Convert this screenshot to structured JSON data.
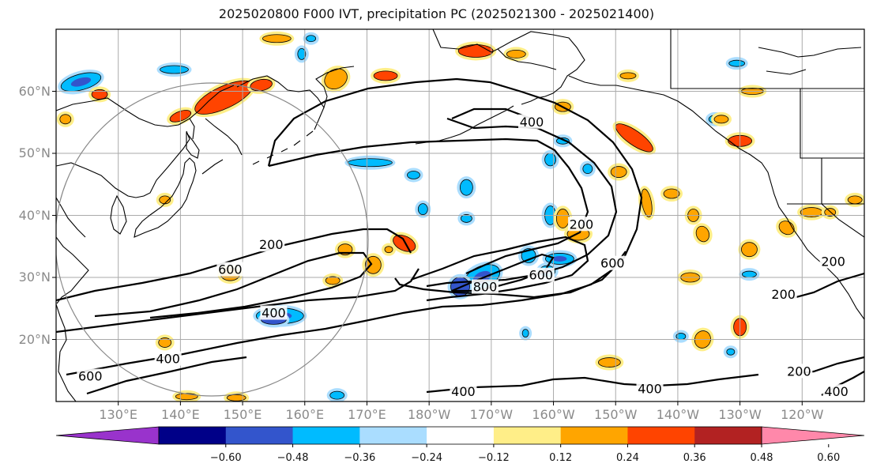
{
  "title": "2025020800 F000 IVT, precipitation PC (2025021300 - 2025021400)",
  "map": {
    "lon_range": [
      120,
      250
    ],
    "lat_range": [
      10,
      70
    ],
    "lat_ticks": [
      {
        "lat": 60,
        "label": "60°N"
      },
      {
        "lat": 50,
        "label": "50°N"
      },
      {
        "lat": 40,
        "label": "40°N"
      },
      {
        "lat": 30,
        "label": "30°N"
      },
      {
        "lat": 20,
        "label": "20°N"
      }
    ],
    "lon_ticks": [
      {
        "lon": 130,
        "label": "130°E"
      },
      {
        "lon": 140,
        "label": "140°E"
      },
      {
        "lon": 150,
        "label": "150°E"
      },
      {
        "lon": 160,
        "label": "160°E"
      },
      {
        "lon": 170,
        "label": "170°E"
      },
      {
        "lon": 180,
        "label": "180°W"
      },
      {
        "lon": 190,
        "label": "170°W"
      },
      {
        "lon": 200,
        "label": "160°W"
      },
      {
        "lon": 210,
        "label": "150°W"
      },
      {
        "lon": 220,
        "label": "140°W"
      },
      {
        "lon": 230,
        "label": "130°W"
      },
      {
        "lon": 240,
        "label": "120°W"
      }
    ],
    "contour_labels": [
      {
        "text": "400",
        "lon": 196.5,
        "lat": 55
      },
      {
        "text": "200",
        "lon": 154.6,
        "lat": 35.2
      },
      {
        "text": "600",
        "lon": 148,
        "lat": 31.2
      },
      {
        "text": "400",
        "lon": 155,
        "lat": 24.2
      },
      {
        "text": "400",
        "lon": 138,
        "lat": 16.8
      },
      {
        "text": "600",
        "lon": 125.5,
        "lat": 14
      },
      {
        "text": "200",
        "lon": 204.5,
        "lat": 38.5
      },
      {
        "text": "600",
        "lon": 209.5,
        "lat": 32.2
      },
      {
        "text": "600",
        "lon": 198,
        "lat": 30.3
      },
      {
        "text": "800",
        "lon": 189,
        "lat": 28.4
      },
      {
        "text": "200",
        "lon": 237,
        "lat": 27.2
      },
      {
        "text": "200",
        "lon": 245,
        "lat": 32.5
      },
      {
        "text": "200",
        "lon": 239.5,
        "lat": 14.8
      },
      {
        "text": "400",
        "lon": 185.5,
        "lat": 11.5
      },
      {
        "text": "400",
        "lon": 215.5,
        "lat": 12
      },
      {
        "text": "400",
        "lon": 245.5,
        "lat": 11.5
      }
    ],
    "precip_blobs": [
      {
        "lon": 147,
        "lat": 59,
        "rx": 40,
        "ry": 14,
        "rot": -25,
        "level": 3
      },
      {
        "lon": 140,
        "lat": 56,
        "rx": 14,
        "ry": 6,
        "rot": -20,
        "level": 3
      },
      {
        "lon": 153,
        "lat": 61,
        "rx": 14,
        "ry": 7,
        "rot": -10,
        "level": 3
      },
      {
        "lon": 155.5,
        "lat": 68.5,
        "rx": 18,
        "ry": 5,
        "rot": 0,
        "level": 2
      },
      {
        "lon": 165,
        "lat": 62,
        "rx": 15,
        "ry": 12,
        "rot": -30,
        "level": 2
      },
      {
        "lon": 173,
        "lat": 62.5,
        "rx": 15,
        "ry": 6,
        "rot": 0,
        "level": 3
      },
      {
        "lon": 187.5,
        "lat": 66.5,
        "rx": 22,
        "ry": 8,
        "rot": 0,
        "level": 3
      },
      {
        "lon": 194,
        "lat": 66,
        "rx": 12,
        "ry": 5,
        "rot": 0,
        "level": 2
      },
      {
        "lon": 127,
        "lat": 59.5,
        "rx": 10,
        "ry": 6,
        "rot": 0,
        "level": 3
      },
      {
        "lon": 121.5,
        "lat": 55.5,
        "rx": 7,
        "ry": 6,
        "rot": 0,
        "level": 2
      },
      {
        "lon": 213,
        "lat": 52.5,
        "rx": 28,
        "ry": 9,
        "rot": 35,
        "level": 4
      },
      {
        "lon": 210.5,
        "lat": 47,
        "rx": 10,
        "ry": 7,
        "rot": 0,
        "level": 2
      },
      {
        "lon": 215,
        "lat": 42,
        "rx": 6,
        "ry": 18,
        "rot": -10,
        "level": 2
      },
      {
        "lon": 201.5,
        "lat": 39.5,
        "rx": 8,
        "ry": 12,
        "rot": 0,
        "level": 2
      },
      {
        "lon": 204,
        "lat": 37,
        "rx": 14,
        "ry": 8,
        "rot": 0,
        "level": 2
      },
      {
        "lon": 176,
        "lat": 35.5,
        "rx": 15,
        "ry": 9,
        "rot": 25,
        "level": 3
      },
      {
        "lon": 171,
        "lat": 32,
        "rx": 10,
        "ry": 11,
        "rot": 0,
        "level": 2
      },
      {
        "lon": 166.5,
        "lat": 34.5,
        "rx": 9,
        "ry": 7,
        "rot": 0,
        "level": 2
      },
      {
        "lon": 164.5,
        "lat": 29.5,
        "rx": 9,
        "ry": 5,
        "rot": 0,
        "level": 2
      },
      {
        "lon": 148,
        "lat": 30.5,
        "rx": 12,
        "ry": 8,
        "rot": 0,
        "level": 2
      },
      {
        "lon": 137.5,
        "lat": 19.5,
        "rx": 8,
        "ry": 6,
        "rot": 0,
        "level": 2
      },
      {
        "lon": 149,
        "lat": 10.6,
        "rx": 12,
        "ry": 4,
        "rot": 0,
        "level": 2
      },
      {
        "lon": 141,
        "lat": 10.8,
        "rx": 14,
        "ry": 4,
        "rot": 0,
        "level": 2
      },
      {
        "lon": 230,
        "lat": 52,
        "rx": 15,
        "ry": 7,
        "rot": 0,
        "level": 3
      },
      {
        "lon": 227,
        "lat": 55.5,
        "rx": 9,
        "ry": 5,
        "rot": 0,
        "level": 2
      },
      {
        "lon": 232,
        "lat": 60,
        "rx": 14,
        "ry": 4,
        "rot": 0,
        "level": 2
      },
      {
        "lon": 219,
        "lat": 43.5,
        "rx": 10,
        "ry": 6,
        "rot": 0,
        "level": 2
      },
      {
        "lon": 222.5,
        "lat": 40,
        "rx": 7,
        "ry": 8,
        "rot": 0,
        "level": 2
      },
      {
        "lon": 224,
        "lat": 37,
        "rx": 8,
        "ry": 10,
        "rot": -20,
        "level": 2
      },
      {
        "lon": 231.5,
        "lat": 34.5,
        "rx": 10,
        "ry": 9,
        "rot": 0,
        "level": 2
      },
      {
        "lon": 237.5,
        "lat": 38,
        "rx": 10,
        "ry": 8,
        "rot": 30,
        "level": 2
      },
      {
        "lon": 241.5,
        "lat": 40.5,
        "rx": 14,
        "ry": 6,
        "rot": 0,
        "level": 2
      },
      {
        "lon": 244.5,
        "lat": 40.5,
        "rx": 7,
        "ry": 5,
        "rot": 0,
        "level": 2
      },
      {
        "lon": 248.5,
        "lat": 42.5,
        "rx": 9,
        "ry": 5,
        "rot": 0,
        "level": 2
      },
      {
        "lon": 222,
        "lat": 30,
        "rx": 12,
        "ry": 6,
        "rot": 0,
        "level": 2
      },
      {
        "lon": 230,
        "lat": 22,
        "rx": 8,
        "ry": 11,
        "rot": 0,
        "level": 3
      },
      {
        "lon": 224,
        "lat": 20,
        "rx": 10,
        "ry": 11,
        "rot": 20,
        "level": 2
      },
      {
        "lon": 209,
        "lat": 16.3,
        "rx": 14,
        "ry": 6,
        "rot": 0,
        "level": 2
      },
      {
        "lon": 201.5,
        "lat": 57.5,
        "rx": 10,
        "ry": 6,
        "rot": 0,
        "level": 2
      },
      {
        "lon": 212,
        "lat": 62.5,
        "rx": 10,
        "ry": 4,
        "rot": 0,
        "level": 2
      },
      {
        "lon": 137.5,
        "lat": 42.5,
        "rx": 7,
        "ry": 5,
        "rot": 0,
        "level": 2
      },
      {
        "lon": 173.5,
        "lat": 34.5,
        "rx": 5,
        "ry": 4,
        "rot": 0,
        "level": 2
      }
    ],
    "neg_blobs": [
      {
        "lon": 124,
        "lat": 61.5,
        "rx": 26,
        "ry": 10,
        "rot": -15,
        "level": -3
      },
      {
        "lon": 139,
        "lat": 63.5,
        "rx": 18,
        "ry": 5,
        "rot": 0,
        "level": -2
      },
      {
        "lon": 161,
        "lat": 68.5,
        "rx": 6,
        "ry": 4,
        "rot": 0,
        "level": -2
      },
      {
        "lon": 170.5,
        "lat": 48.5,
        "rx": 28,
        "ry": 5,
        "rot": 0,
        "level": -2
      },
      {
        "lon": 186,
        "lat": 44.5,
        "rx": 8,
        "ry": 10,
        "rot": 0,
        "level": -2
      },
      {
        "lon": 199.5,
        "lat": 49,
        "rx": 7,
        "ry": 8,
        "rot": 0,
        "level": -2
      },
      {
        "lon": 205.5,
        "lat": 47.5,
        "rx": 6,
        "ry": 6,
        "rot": 0,
        "level": -2
      },
      {
        "lon": 188.5,
        "lat": 30,
        "rx": 24,
        "ry": 14,
        "rot": -25,
        "level": -3
      },
      {
        "lon": 185,
        "lat": 28.5,
        "rx": 12,
        "ry": 12,
        "rot": 0,
        "level": -4
      },
      {
        "lon": 196,
        "lat": 33.5,
        "rx": 9,
        "ry": 9,
        "rot": 0,
        "level": -2
      },
      {
        "lon": 201,
        "lat": 33,
        "rx": 18,
        "ry": 7,
        "rot": 0,
        "level": -3
      },
      {
        "lon": 199,
        "lat": 31,
        "rx": 10,
        "ry": 7,
        "rot": 0,
        "level": -3
      },
      {
        "lon": 156,
        "lat": 23.8,
        "rx": 30,
        "ry": 10,
        "rot": 0,
        "level": -3
      },
      {
        "lon": 155,
        "lat": 23.2,
        "rx": 16,
        "ry": 6,
        "rot": 0,
        "level": -4
      },
      {
        "lon": 179,
        "lat": 41,
        "rx": 6,
        "ry": 7,
        "rot": 0,
        "level": -2
      },
      {
        "lon": 186,
        "lat": 39.5,
        "rx": 7,
        "ry": 5,
        "rot": 0,
        "level": -2
      },
      {
        "lon": 199.5,
        "lat": 40,
        "rx": 7,
        "ry": 12,
        "rot": 0,
        "level": -2
      },
      {
        "lon": 177.5,
        "lat": 46.5,
        "rx": 8,
        "ry": 5,
        "rot": 0,
        "level": -2
      },
      {
        "lon": 201.5,
        "lat": 52,
        "rx": 8,
        "ry": 4,
        "rot": 0,
        "level": -2
      },
      {
        "lon": 226,
        "lat": 55.5,
        "rx": 8,
        "ry": 5,
        "rot": 0,
        "level": -2
      },
      {
        "lon": 229.5,
        "lat": 64.5,
        "rx": 10,
        "ry": 4,
        "rot": 0,
        "level": -2
      },
      {
        "lon": 231.5,
        "lat": 30.5,
        "rx": 9,
        "ry": 4,
        "rot": 0,
        "level": -2
      },
      {
        "lon": 165.2,
        "lat": 11,
        "rx": 9,
        "ry": 5,
        "rot": 0,
        "level": -2
      },
      {
        "lon": 220.5,
        "lat": 20.5,
        "rx": 6,
        "ry": 4,
        "rot": 0,
        "level": -2
      },
      {
        "lon": 159.5,
        "lat": 66,
        "rx": 5,
        "ry": 7,
        "rot": 0,
        "level": -2
      },
      {
        "lon": 195.5,
        "lat": 21,
        "rx": 4,
        "ry": 5,
        "rot": 0,
        "level": -2
      },
      {
        "lon": 228.5,
        "lat": 18,
        "rx": 5,
        "ry": 4,
        "rot": 0,
        "level": -2
      }
    ]
  },
  "colorbar": {
    "colors": [
      "#9933cc",
      "#000088",
      "#3355cc",
      "#00bbff",
      "#aaddff",
      "#ffffff",
      "#ffee88",
      "#ffa500",
      "#ff4400",
      "#b22222",
      "#ff88aa"
    ],
    "labels": [
      "−0.60",
      "−0.48",
      "−0.36",
      "−0.24",
      "−0.12",
      "0.12",
      "0.24",
      "0.36",
      "0.48",
      "0.60"
    ]
  }
}
